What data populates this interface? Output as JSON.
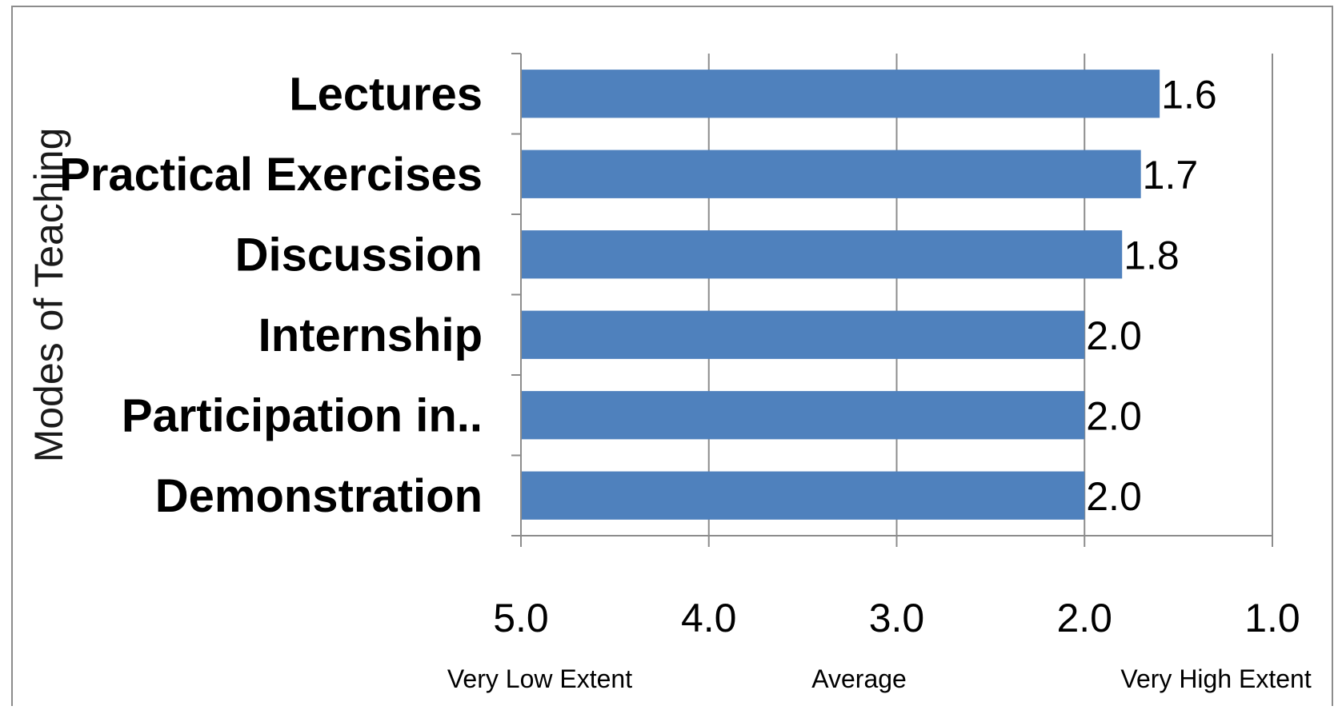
{
  "chart_data": {
    "type": "bar",
    "orientation": "horizontal",
    "title": "",
    "xlabel": "",
    "ylabel": "Modes of Teaching",
    "categories": [
      "Lectures",
      "Practical Exercises",
      "Discussion",
      "Internship",
      "Participation in..",
      "Demonstration"
    ],
    "values": [
      1.6,
      1.7,
      1.8,
      2.0,
      2.0,
      2.0
    ],
    "data_labels": [
      "1.6",
      "1.7",
      "1.8",
      "2.0",
      "2.0",
      "2.0"
    ],
    "xlim": [
      5.0,
      1.0
    ],
    "x_reversed": true,
    "x_ticks": [
      5.0,
      4.0,
      3.0,
      2.0,
      1.0
    ],
    "x_tick_labels": [
      "5.0",
      "4.0",
      "3.0",
      "2.0",
      "1.0"
    ],
    "x_anchor_labels": [
      {
        "value": 4.9,
        "text": "Very Low Extent"
      },
      {
        "value": 3.2,
        "text": "Average"
      },
      {
        "value": 1.3,
        "text": "Very High Extent"
      }
    ],
    "grid": "vertical",
    "legend": "none",
    "colors": {
      "bar": "#4F81BD",
      "grid": "#8C8C8C",
      "axis": "#8C8C8C",
      "frame": "#8C8C8C"
    }
  }
}
